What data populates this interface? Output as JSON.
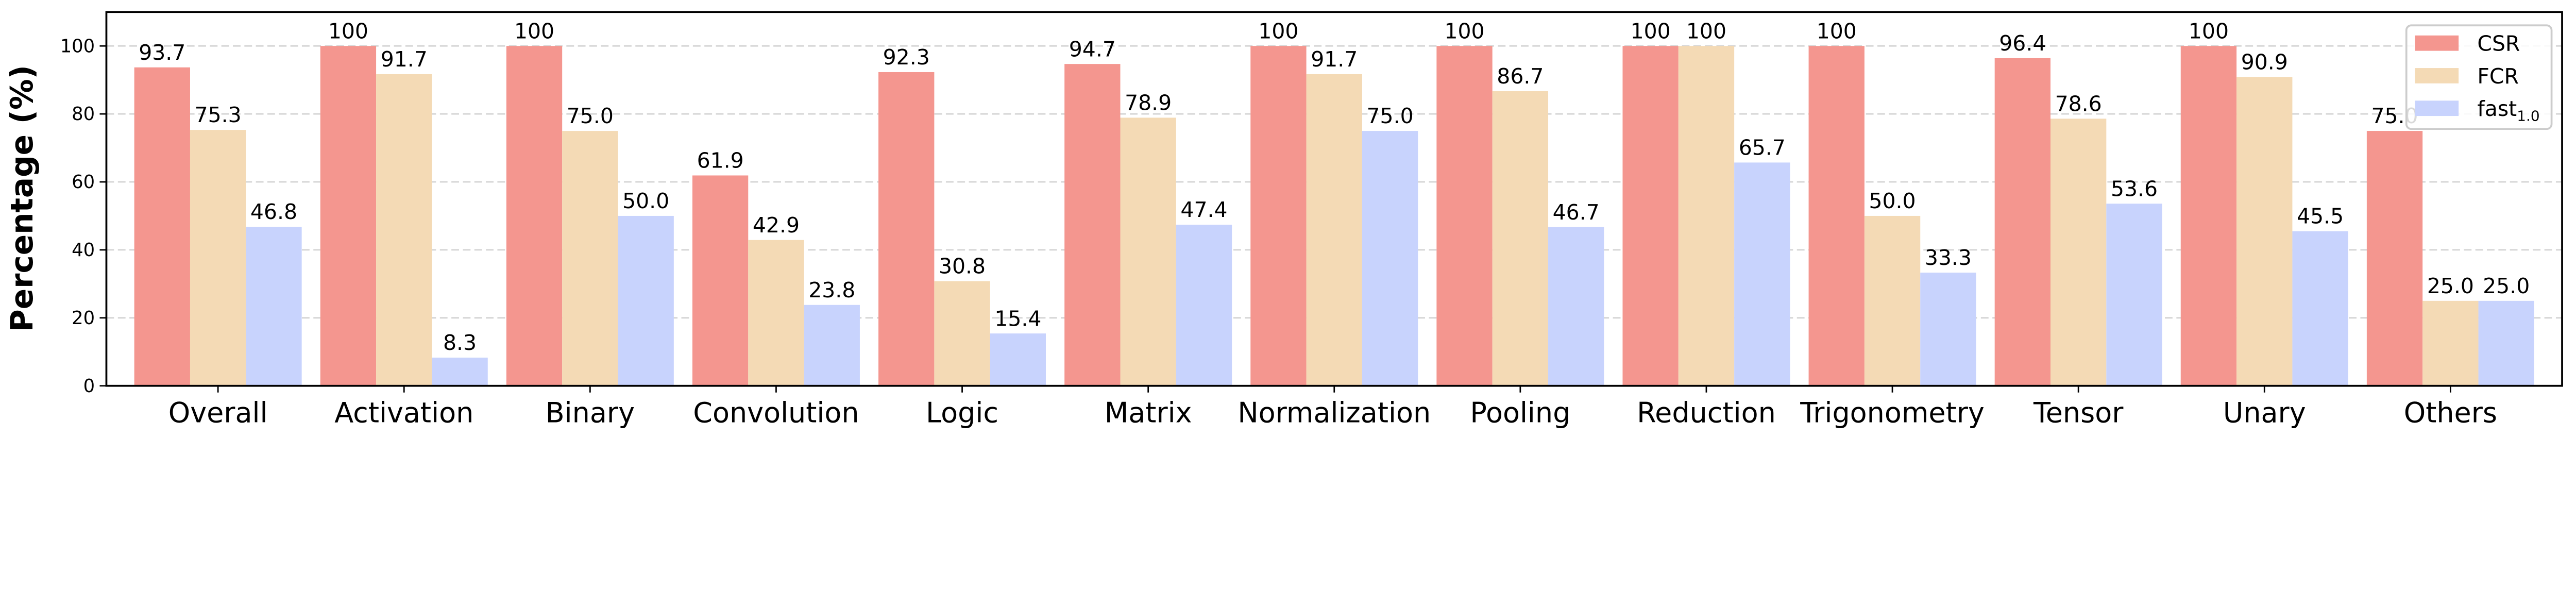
{
  "chart_data": {
    "type": "bar",
    "title": "",
    "xlabel": "",
    "ylabel": "Percentage (%)",
    "ylim": [
      0,
      110
    ],
    "yticks": [
      0,
      20,
      40,
      60,
      80,
      100
    ],
    "grid": "y dashed",
    "legend_position": "top-right",
    "categories": [
      "Overall",
      "Activation",
      "Binary",
      "Convolution",
      "Logic",
      "Matrix",
      "Normalization",
      "Pooling",
      "Reduction",
      "Trigonometry",
      "Tensor",
      "Unary",
      "Others"
    ],
    "series": [
      {
        "name": "CSR",
        "color": "#f4968f",
        "values": [
          93.7,
          100,
          100,
          61.9,
          92.3,
          94.7,
          100,
          100,
          100,
          100,
          96.4,
          100,
          75.0
        ],
        "labels": [
          "93.7",
          "100",
          "100",
          "61.9",
          "92.3",
          "94.7",
          "100",
          "100",
          "100",
          "100",
          "96.4",
          "100",
          "75.0"
        ]
      },
      {
        "name": "FCR",
        "color": "#f4dab5",
        "values": [
          75.3,
          91.7,
          75.0,
          42.9,
          30.8,
          78.9,
          91.7,
          86.7,
          100,
          50.0,
          78.6,
          90.9,
          25.0
        ],
        "labels": [
          "75.3",
          "91.7",
          "75.0",
          "42.9",
          "30.8",
          "78.9",
          "91.7",
          "86.7",
          "100",
          "50.0",
          "78.6",
          "90.9",
          "25.0"
        ]
      },
      {
        "name": "fast",
        "name_subscript": "1.0",
        "color": "#c8d3fd",
        "values": [
          46.8,
          8.3,
          50.0,
          23.8,
          15.4,
          47.4,
          75.0,
          46.7,
          65.7,
          33.3,
          53.6,
          45.5,
          25.0
        ],
        "labels": [
          "46.8",
          "8.3",
          "50.0",
          "23.8",
          "15.4",
          "47.4",
          "75.0",
          "46.7",
          "65.7",
          "33.3",
          "53.6",
          "45.5",
          "25.0"
        ]
      }
    ]
  }
}
